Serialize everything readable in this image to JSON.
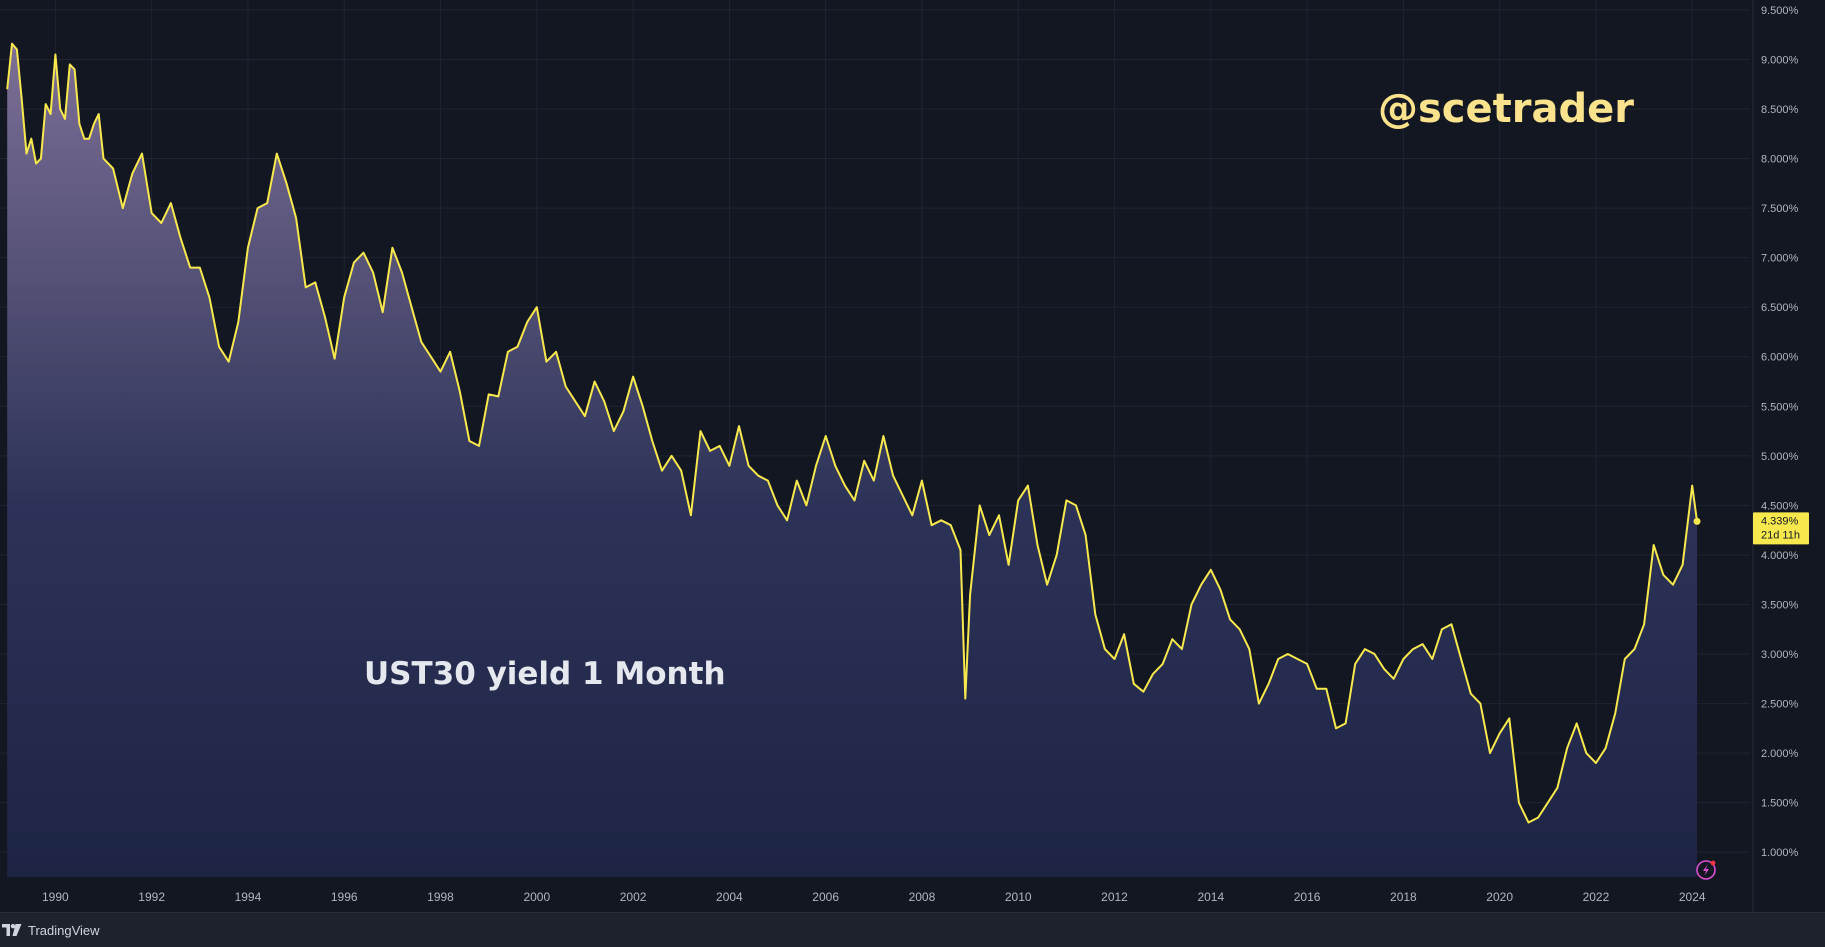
{
  "watermark": "@scetrader",
  "brand": "TradingView",
  "chart_data": {
    "type": "area",
    "series": [
      {
        "name": "UST30 yield 1 Month",
        "color": "#f7e94d",
        "x": [
          1989.0,
          1989.1,
          1989.2,
          1989.3,
          1989.4,
          1989.5,
          1989.6,
          1989.7,
          1989.8,
          1989.9,
          1990.0,
          1990.1,
          1990.2,
          1990.3,
          1990.4,
          1990.5,
          1990.6,
          1990.7,
          1990.8,
          1990.9,
          1991.0,
          1991.2,
          1991.4,
          1991.6,
          1991.8,
          1992.0,
          1992.2,
          1992.4,
          1992.6,
          1992.8,
          1993.0,
          1993.2,
          1993.4,
          1993.6,
          1993.8,
          1994.0,
          1994.2,
          1994.4,
          1994.6,
          1994.8,
          1995.0,
          1995.2,
          1995.4,
          1995.6,
          1995.8,
          1996.0,
          1996.2,
          1996.4,
          1996.6,
          1996.8,
          1997.0,
          1997.2,
          1997.4,
          1997.6,
          1997.8,
          1998.0,
          1998.2,
          1998.4,
          1998.6,
          1998.8,
          1999.0,
          1999.2,
          1999.4,
          1999.6,
          1999.8,
          2000.0,
          2000.2,
          2000.4,
          2000.6,
          2000.8,
          2001.0,
          2001.2,
          2001.4,
          2001.6,
          2001.8,
          2002.0,
          2002.2,
          2002.4,
          2002.6,
          2002.8,
          2003.0,
          2003.2,
          2003.4,
          2003.6,
          2003.8,
          2004.0,
          2004.2,
          2004.4,
          2004.6,
          2004.8,
          2005.0,
          2005.2,
          2005.4,
          2005.6,
          2005.8,
          2006.0,
          2006.2,
          2006.4,
          2006.6,
          2006.8,
          2007.0,
          2007.2,
          2007.4,
          2007.6,
          2007.8,
          2008.0,
          2008.2,
          2008.4,
          2008.6,
          2008.8,
          2008.9,
          2009.0,
          2009.2,
          2009.4,
          2009.6,
          2009.8,
          2010.0,
          2010.2,
          2010.4,
          2010.6,
          2010.8,
          2011.0,
          2011.2,
          2011.4,
          2011.6,
          2011.8,
          2012.0,
          2012.2,
          2012.4,
          2012.6,
          2012.8,
          2013.0,
          2013.2,
          2013.4,
          2013.6,
          2013.8,
          2014.0,
          2014.2,
          2014.4,
          2014.6,
          2014.8,
          2015.0,
          2015.2,
          2015.4,
          2015.6,
          2015.8,
          2016.0,
          2016.2,
          2016.4,
          2016.6,
          2016.8,
          2017.0,
          2017.2,
          2017.4,
          2017.6,
          2017.8,
          2018.0,
          2018.2,
          2018.4,
          2018.6,
          2018.8,
          2019.0,
          2019.2,
          2019.4,
          2019.6,
          2019.8,
          2020.0,
          2020.2,
          2020.4,
          2020.6,
          2020.8,
          2021.0,
          2021.2,
          2021.4,
          2021.6,
          2021.8,
          2022.0,
          2022.2,
          2022.4,
          2022.6,
          2022.8,
          2023.0,
          2023.2,
          2023.4,
          2023.6,
          2023.8,
          2024.0,
          2024.1
        ],
        "y": [
          8.7,
          9.16,
          9.1,
          8.6,
          8.05,
          8.2,
          7.95,
          8.0,
          8.55,
          8.45,
          9.05,
          8.5,
          8.4,
          8.95,
          8.9,
          8.35,
          8.2,
          8.2,
          8.35,
          8.45,
          8.0,
          7.9,
          7.5,
          7.85,
          8.05,
          7.45,
          7.35,
          7.55,
          7.2,
          6.9,
          6.9,
          6.6,
          6.1,
          5.95,
          6.35,
          7.1,
          7.5,
          7.55,
          8.05,
          7.75,
          7.4,
          6.7,
          6.75,
          6.4,
          5.98,
          6.6,
          6.95,
          7.05,
          6.85,
          6.45,
          7.1,
          6.85,
          6.5,
          6.15,
          6.0,
          5.85,
          6.05,
          5.65,
          5.15,
          5.1,
          5.62,
          5.6,
          6.05,
          6.1,
          6.35,
          6.5,
          5.95,
          6.05,
          5.7,
          5.55,
          5.4,
          5.75,
          5.55,
          5.25,
          5.45,
          5.8,
          5.5,
          5.15,
          4.85,
          5.0,
          4.85,
          4.4,
          5.25,
          5.05,
          5.1,
          4.9,
          5.3,
          4.9,
          4.8,
          4.75,
          4.5,
          4.35,
          4.75,
          4.5,
          4.9,
          5.2,
          4.9,
          4.7,
          4.55,
          4.95,
          4.75,
          5.2,
          4.8,
          4.6,
          4.4,
          4.75,
          4.3,
          4.35,
          4.3,
          4.05,
          2.55,
          3.6,
          4.5,
          4.2,
          4.4,
          3.9,
          4.55,
          4.7,
          4.1,
          3.7,
          4.0,
          4.55,
          4.5,
          4.2,
          3.4,
          3.05,
          2.95,
          3.2,
          2.7,
          2.62,
          2.8,
          2.9,
          3.15,
          3.05,
          3.5,
          3.7,
          3.85,
          3.65,
          3.35,
          3.25,
          3.05,
          2.5,
          2.7,
          2.95,
          3.0,
          2.95,
          2.9,
          2.65,
          2.65,
          2.25,
          2.3,
          2.9,
          3.05,
          3.0,
          2.85,
          2.75,
          2.95,
          3.05,
          3.1,
          2.95,
          3.25,
          3.3,
          2.95,
          2.6,
          2.5,
          2.0,
          2.2,
          2.35,
          1.5,
          1.3,
          1.35,
          1.5,
          1.65,
          2.05,
          2.3,
          2.0,
          1.9,
          2.05,
          2.4,
          2.95,
          3.05,
          3.3,
          4.1,
          3.8,
          3.7,
          3.9,
          4.7,
          4.339
        ]
      }
    ],
    "xlim": [
      1988.85,
      2025.2
    ],
    "ylim": [
      0.75,
      9.6
    ],
    "x_ticks": [
      "1990",
      "1992",
      "1994",
      "1996",
      "1998",
      "2000",
      "2002",
      "2004",
      "2006",
      "2008",
      "2010",
      "2012",
      "2014",
      "2016",
      "2018",
      "2020",
      "2022",
      "2024"
    ],
    "y_ticks": [
      "1.000%",
      "1.500%",
      "2.000%",
      "2.500%",
      "3.000%",
      "3.500%",
      "4.000%",
      "4.500%",
      "5.000%",
      "5.500%",
      "6.000%",
      "6.500%",
      "7.000%",
      "7.500%",
      "8.000%",
      "8.500%",
      "9.000%",
      "9.500%"
    ],
    "last_value_label": "4.339%",
    "countdown_label": "21d 11h",
    "annotation": "UST30 yield 1 Month",
    "grid": true,
    "colors": {
      "line": "#f7e94d",
      "fill_top": "#7d6f96",
      "fill_bottom": "#1f2647",
      "background": "#131722",
      "grid": "#1f2430"
    }
  }
}
